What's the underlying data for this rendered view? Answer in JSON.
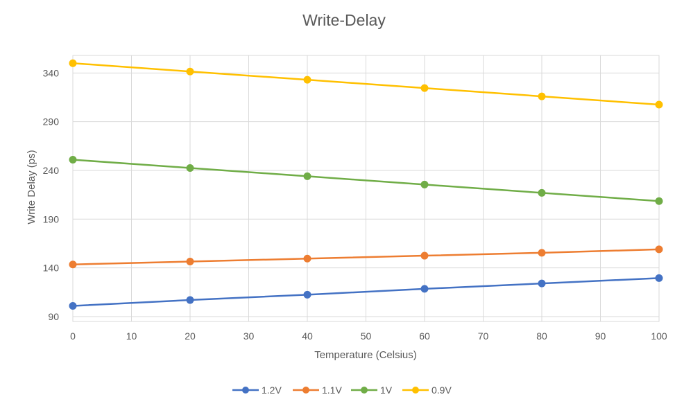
{
  "chart_data": {
    "type": "line",
    "title": "Write-Delay",
    "xlabel": "Temperature (Celsius)",
    "ylabel": "Write Delay (ps)",
    "xlim": [
      0,
      100
    ],
    "ylim": [
      85,
      358
    ],
    "x_ticks": [
      0,
      10,
      20,
      30,
      40,
      50,
      60,
      70,
      80,
      90,
      100
    ],
    "y_ticks": [
      90,
      140,
      190,
      240,
      290,
      340
    ],
    "grid": true,
    "legend_position": "bottom",
    "x": [
      0,
      20,
      40,
      60,
      80,
      100
    ],
    "series": [
      {
        "name": "1.2V",
        "color": "#4472C4",
        "values": [
          101,
          107,
          112.5,
          118.5,
          124,
          129.5
        ]
      },
      {
        "name": "1.1V",
        "color": "#ED7D31",
        "values": [
          143.5,
          146.5,
          149.5,
          152.5,
          155.5,
          159
        ]
      },
      {
        "name": "1V",
        "color": "#70AD47",
        "values": [
          251,
          242.5,
          234,
          225.5,
          217,
          208.5
        ]
      },
      {
        "name": "0.9V",
        "color": "#FFC000",
        "values": [
          350,
          341.5,
          333,
          324.5,
          316,
          307.5
        ]
      }
    ]
  }
}
